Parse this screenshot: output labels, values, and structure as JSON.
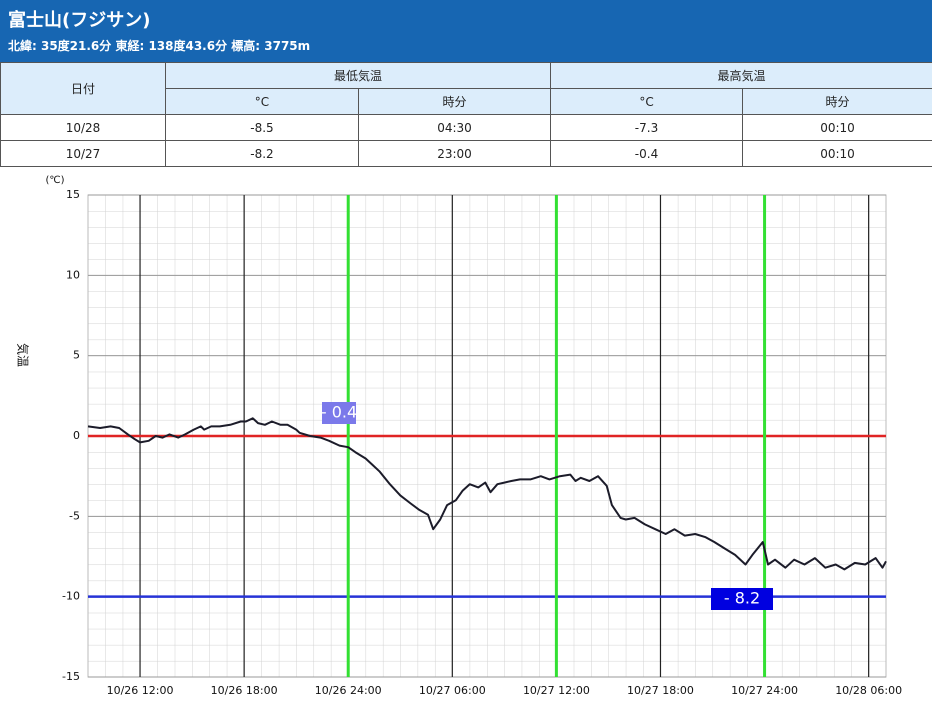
{
  "header": {
    "title": "富士山(フジサン)",
    "subtitle": "北緯: 35度21.6分 東経: 138度43.6分 標高: 3775m"
  },
  "table": {
    "head": [
      "日付",
      "最低気温",
      "最高気温"
    ],
    "subhead": [
      "°C",
      "時分",
      "°C",
      "時分"
    ],
    "rows": [
      [
        "10/28",
        "-8.5",
        "04:30",
        "-7.3",
        "00:10"
      ],
      [
        "10/27",
        "-8.2",
        "23:00",
        "-0.4",
        "00:10"
      ]
    ]
  },
  "chart_data": {
    "type": "line",
    "ylabel": "気温",
    "yunit": "(℃)",
    "xlim": [
      9,
      55
    ],
    "ylim": [
      -15,
      15
    ],
    "xticks": [
      {
        "value": 12,
        "label": "10/26 12:00"
      },
      {
        "value": 18,
        "label": "10/26 18:00"
      },
      {
        "value": 24,
        "label": "10/26 24:00"
      },
      {
        "value": 30,
        "label": "10/27 06:00"
      },
      {
        "value": 36,
        "label": "10/27 12:00"
      },
      {
        "value": 42,
        "label": "10/27 18:00"
      },
      {
        "value": 48,
        "label": "10/27 24:00"
      },
      {
        "value": 54,
        "label": "10/28 06:00"
      }
    ],
    "yticks": [
      15,
      10,
      5,
      0,
      -5,
      -10,
      -15
    ],
    "grid": true,
    "color": "#1c1c2a",
    "x": [
      9.0,
      9.7,
      10.3,
      10.8,
      11.3,
      11.7,
      12.0,
      12.5,
      12.9,
      13.3,
      13.7,
      14.2,
      14.6,
      15.1,
      15.5,
      15.7,
      16.1,
      16.6,
      17.2,
      17.8,
      18.1,
      18.5,
      18.8,
      19.2,
      19.6,
      20.1,
      20.5,
      21.0,
      21.2,
      21.8,
      22.4,
      22.9,
      23.5,
      24.0,
      24.4,
      25.0,
      25.4,
      25.8,
      26.4,
      27.0,
      27.6,
      28.1,
      28.6,
      28.9,
      29.3,
      29.7,
      30.2,
      30.6,
      31.0,
      31.5,
      31.9,
      32.2,
      32.6,
      33.0,
      33.4,
      33.9,
      34.5,
      35.1,
      35.6,
      36.2,
      36.8,
      37.1,
      37.4,
      37.9,
      38.4,
      38.9,
      39.2,
      39.7,
      40.0,
      40.5,
      41.1,
      41.7,
      42.3,
      42.8,
      43.4,
      44.0,
      44.6,
      45.1,
      45.7,
      46.3,
      46.9,
      47.3,
      47.9,
      48.2,
      48.6,
      49.2,
      49.7,
      50.3,
      50.9,
      51.5,
      52.1,
      52.6,
      53.2,
      53.8,
      54.4,
      54.8,
      55.0
    ],
    "values": [
      0.6,
      0.5,
      0.6,
      0.5,
      0.1,
      -0.2,
      -0.4,
      -0.3,
      0.0,
      -0.1,
      0.1,
      -0.1,
      0.1,
      0.4,
      0.6,
      0.4,
      0.6,
      0.6,
      0.7,
      0.9,
      0.9,
      1.1,
      0.8,
      0.7,
      0.9,
      0.7,
      0.7,
      0.4,
      0.2,
      0.0,
      -0.1,
      -0.3,
      -0.6,
      -0.7,
      -1.0,
      -1.4,
      -1.8,
      -2.2,
      -3.0,
      -3.7,
      -4.2,
      -4.6,
      -4.9,
      -5.8,
      -5.2,
      -4.3,
      -4.0,
      -3.4,
      -3.0,
      -3.2,
      -2.9,
      -3.5,
      -3.0,
      -2.9,
      -2.8,
      -2.7,
      -2.7,
      -2.5,
      -2.7,
      -2.5,
      -2.4,
      -2.8,
      -2.6,
      -2.8,
      -2.5,
      -3.1,
      -4.3,
      -5.1,
      -5.2,
      -5.1,
      -5.5,
      -5.8,
      -6.1,
      -5.8,
      -6.2,
      -6.1,
      -6.3,
      -6.6,
      -7.0,
      -7.4,
      -8.0,
      -7.4,
      -6.6,
      -8.0,
      -7.7,
      -8.2,
      -7.7,
      -8.0,
      -7.6,
      -8.2,
      -8.0,
      -8.3,
      -7.9,
      -8.0,
      -7.6,
      -8.2,
      -7.8
    ],
    "hlines": [
      {
        "value": 0,
        "color": "#e02424"
      },
      {
        "value": -10,
        "color": "#2633d6"
      }
    ],
    "vlines": [
      {
        "value": 24,
        "color": "#33e033"
      },
      {
        "value": 36,
        "color": "#33e033"
      },
      {
        "value": 48,
        "color": "#33e033"
      }
    ],
    "annotations": [
      {
        "text": "- 0.4",
        "color": "#7b79ea"
      },
      {
        "text": "- 8.2",
        "color": "#0000e0"
      }
    ]
  }
}
